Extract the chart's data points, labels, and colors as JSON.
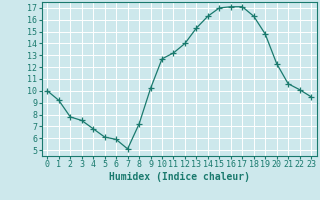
{
  "x": [
    0,
    1,
    2,
    3,
    4,
    5,
    6,
    7,
    8,
    9,
    10,
    11,
    12,
    13,
    14,
    15,
    16,
    17,
    18,
    19,
    20,
    21,
    22,
    23
  ],
  "y": [
    10,
    9.2,
    7.8,
    7.5,
    6.8,
    6.1,
    5.9,
    5.1,
    7.2,
    10.2,
    12.7,
    13.2,
    14.0,
    15.3,
    16.3,
    17.0,
    17.1,
    17.1,
    16.3,
    14.8,
    12.3,
    10.6,
    10.1,
    9.5
  ],
  "line_color": "#1a7a6e",
  "marker": "+",
  "marker_size": 4,
  "bg_color": "#cde8ec",
  "grid_color": "#ffffff",
  "xlabel": "Humidex (Indice chaleur)",
  "xlim": [
    -0.5,
    23.5
  ],
  "ylim": [
    4.5,
    17.5
  ],
  "yticks": [
    5,
    6,
    7,
    8,
    9,
    10,
    11,
    12,
    13,
    14,
    15,
    16,
    17
  ],
  "xticks": [
    0,
    1,
    2,
    3,
    4,
    5,
    6,
    7,
    8,
    9,
    10,
    11,
    12,
    13,
    14,
    15,
    16,
    17,
    18,
    19,
    20,
    21,
    22,
    23
  ],
  "tick_color": "#1a7a6e",
  "label_fontsize": 7,
  "tick_fontsize": 6
}
